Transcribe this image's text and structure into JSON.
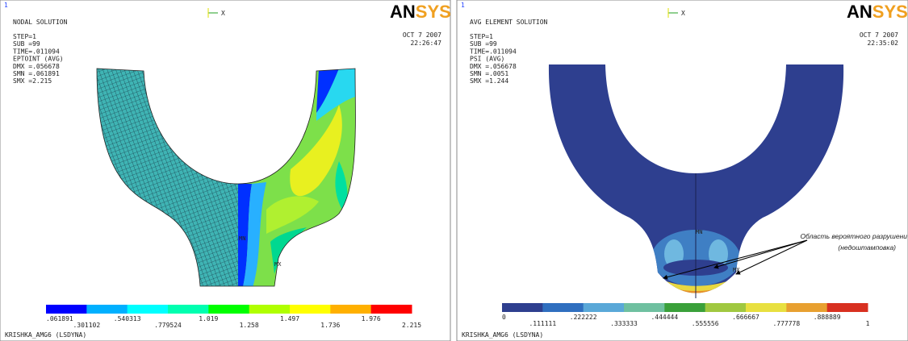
{
  "panels": [
    {
      "window_number": "1",
      "title": "NODAL SOLUTION",
      "info": [
        "STEP=1",
        "SUB =99",
        "TIME=.011094",
        "EPTOINT  (AVG)",
        "DMX =.056678",
        "SMN =.061891",
        "SMX =2.215"
      ],
      "date": "OCT  7 2007",
      "time": "22:26:47",
      "logo": {
        "part1": "AN",
        "part2": "SYS"
      },
      "triad": "X",
      "min_marker": "MN",
      "max_marker": "MX",
      "legend_labels": [
        ".061891",
        ".301102",
        ".540313",
        ".779524",
        "1.019",
        "1.258",
        "1.497",
        "1.736",
        "1.976",
        "2.215"
      ],
      "model": "KRISHKA_AMG6 (LSDYNA)"
    },
    {
      "window_number": "1",
      "title": "AVG ELEMENT SOLUTION",
      "info": [
        "STEP=1",
        "SUB =99",
        "TIME=.011094",
        "PSI        (AVG)",
        "DMX =.056678",
        "SMN =.0051",
        "SMX =1.244"
      ],
      "date": "OCT  7 2007",
      "time": "22:35:02",
      "logo": {
        "part1": "AN",
        "part2": "SYS"
      },
      "triad": "X",
      "min_marker": "MN",
      "max_marker": "MX",
      "legend_labels": [
        "0",
        ".111111",
        ".222222",
        ".333333",
        ".444444",
        ".555556",
        ".666667",
        ".777778",
        ".888889",
        "1"
      ],
      "model": "KRISHKA_AMG6 (LSDYNA)",
      "annotation": [
        "Область вероятного разрушени",
        "(недоштамповка)"
      ]
    }
  ]
}
